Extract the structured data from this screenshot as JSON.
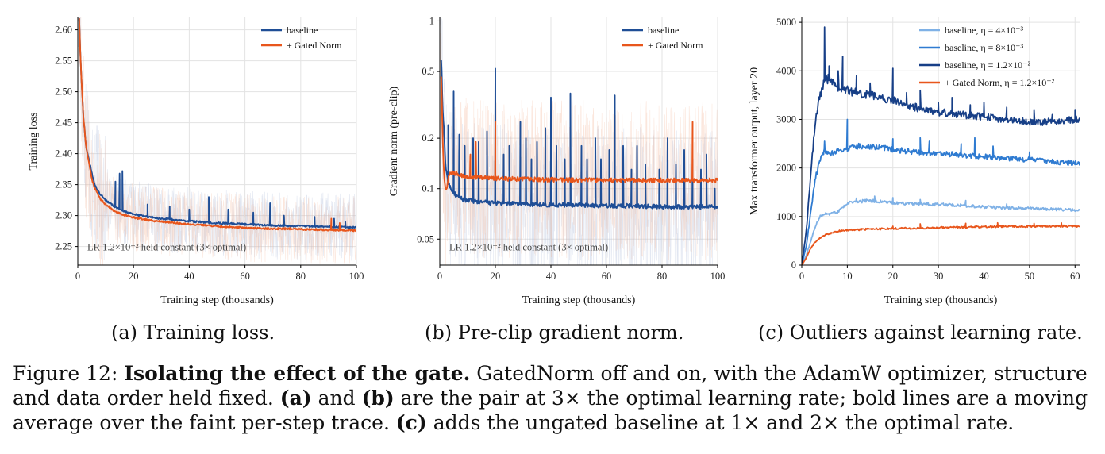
{
  "chart_data": [
    {
      "type": "line",
      "xlabel": "Training step (thousands)",
      "ylabel": "Training loss",
      "xlim": [
        0,
        100
      ],
      "ylim": [
        2.22,
        2.62
      ],
      "xticks": [
        "0",
        "20",
        "40",
        "60",
        "80",
        "100"
      ],
      "yticks": [
        "2.25",
        "2.30",
        "2.35",
        "2.40",
        "2.45",
        "2.50",
        "2.55",
        "2.60"
      ],
      "annotation": "LR 1.2×10⁻² held constant  (3× optimal)",
      "legend": {
        "placement": "top-right",
        "entries": [
          "baseline",
          "+ Gated Norm"
        ]
      },
      "grid": true,
      "series": [
        {
          "name": "baseline",
          "color": "#1f4e96",
          "x": [
            0.5,
            1,
            2,
            3,
            4,
            5,
            6,
            8,
            10,
            13,
            16,
            20,
            25,
            30,
            40,
            50,
            60,
            70,
            80,
            90,
            100
          ],
          "y": [
            2.62,
            2.55,
            2.46,
            2.41,
            2.39,
            2.37,
            2.35,
            2.335,
            2.325,
            2.315,
            2.308,
            2.302,
            2.298,
            2.295,
            2.291,
            2.288,
            2.286,
            2.284,
            2.283,
            2.282,
            2.281
          ],
          "spikes": [
            [
              13.5,
              2.355
            ],
            [
              15,
              2.368
            ],
            [
              16,
              2.372
            ],
            [
              25,
              2.318
            ],
            [
              33,
              2.315
            ],
            [
              40,
              2.31
            ],
            [
              47,
              2.33
            ],
            [
              54,
              2.31
            ],
            [
              63,
              2.305
            ],
            [
              69,
              2.32
            ],
            [
              74,
              2.3
            ],
            [
              85,
              2.298
            ],
            [
              92,
              2.295
            ],
            [
              96,
              2.29
            ]
          ]
        },
        {
          "name": "+ Gated Norm",
          "color": "#e8561c",
          "x": [
            0.5,
            1,
            2,
            3,
            4,
            5,
            6,
            8,
            10,
            13,
            16,
            20,
            25,
            30,
            40,
            50,
            60,
            70,
            80,
            90,
            100
          ],
          "y": [
            2.62,
            2.55,
            2.46,
            2.41,
            2.385,
            2.36,
            2.345,
            2.327,
            2.318,
            2.308,
            2.302,
            2.297,
            2.293,
            2.29,
            2.286,
            2.283,
            2.28,
            2.279,
            2.278,
            2.277,
            2.276
          ],
          "spikes": [
            [
              91,
              2.295
            ],
            [
              94,
              2.288
            ]
          ]
        }
      ]
    },
    {
      "type": "line",
      "xlabel": "Training step (thousands)",
      "ylabel": "Gradient norm (pre-clip)",
      "xlim": [
        0,
        100
      ],
      "ylim": [
        0.035,
        1.05
      ],
      "yscale": "log",
      "xticks": [
        "0",
        "20",
        "40",
        "60",
        "80",
        "100"
      ],
      "yticks": [
        "0.05",
        "0.1",
        "0.2",
        "0.5",
        "1"
      ],
      "annotation": "LR 1.2×10⁻² held constant  (3× optimal)",
      "legend": {
        "placement": "top-right",
        "entries": [
          "baseline",
          "+ Gated Norm"
        ]
      },
      "grid": true,
      "series": [
        {
          "name": "baseline",
          "color": "#1f4e96",
          "x": [
            0.5,
            1,
            2,
            3,
            4,
            5,
            6,
            8,
            10,
            15,
            20,
            30,
            40,
            50,
            60,
            70,
            80,
            90,
            100
          ],
          "y": [
            0.6,
            0.3,
            0.14,
            0.11,
            0.1,
            0.095,
            0.09,
            0.087,
            0.085,
            0.083,
            0.082,
            0.081,
            0.08,
            0.08,
            0.079,
            0.079,
            0.078,
            0.078,
            0.078
          ],
          "spikes": [
            [
              3,
              0.24
            ],
            [
              5,
              0.38
            ],
            [
              7,
              0.21
            ],
            [
              9,
              0.18
            ],
            [
              12,
              0.2
            ],
            [
              14,
              0.19
            ],
            [
              17,
              0.22
            ],
            [
              20,
              0.52
            ],
            [
              23,
              0.16
            ],
            [
              25,
              0.18
            ],
            [
              29,
              0.25
            ],
            [
              31,
              0.2
            ],
            [
              33,
              0.15
            ],
            [
              35,
              0.19
            ],
            [
              38,
              0.23
            ],
            [
              40,
              0.35
            ],
            [
              42,
              0.18
            ],
            [
              45,
              0.15
            ],
            [
              47,
              0.37
            ],
            [
              51,
              0.18
            ],
            [
              53,
              0.15
            ],
            [
              56,
              0.2
            ],
            [
              58,
              0.15
            ],
            [
              61,
              0.17
            ],
            [
              63,
              0.36
            ],
            [
              66,
              0.18
            ],
            [
              69,
              0.13
            ],
            [
              71,
              0.18
            ],
            [
              74,
              0.14
            ],
            [
              79,
              0.13
            ],
            [
              82,
              0.2
            ],
            [
              85,
              0.14
            ],
            [
              88,
              0.17
            ],
            [
              91,
              0.15
            ],
            [
              94,
              0.13
            ],
            [
              96,
              0.16
            ],
            [
              99,
              0.1
            ]
          ]
        },
        {
          "name": "+ Gated Norm",
          "color": "#e8561c",
          "x": [
            0.5,
            1,
            1.5,
            2,
            2.5,
            3,
            4,
            6,
            10,
            20,
            40,
            60,
            80,
            100
          ],
          "y": [
            0.48,
            0.2,
            0.12,
            0.1,
            0.1,
            0.115,
            0.125,
            0.122,
            0.118,
            0.115,
            0.113,
            0.112,
            0.112,
            0.112
          ],
          "spikes": [
            [
              11,
              0.16
            ],
            [
              13,
              0.19
            ],
            [
              20,
              0.25
            ],
            [
              91,
              0.25
            ]
          ]
        }
      ]
    },
    {
      "type": "line",
      "xlabel": "Training step (thousands)",
      "ylabel": "Max transformer output, layer 20",
      "xlim": [
        0,
        61
      ],
      "ylim": [
        0,
        5100
      ],
      "xticks": [
        "0",
        "10",
        "20",
        "30",
        "40",
        "50",
        "60"
      ],
      "yticks": [
        "0",
        "1000",
        "2000",
        "3000",
        "4000",
        "5000"
      ],
      "legend": {
        "placement": "top-right",
        "entries": [
          "baseline, η = 4×10⁻³",
          "baseline, η = 8×10⁻³",
          "baseline, η = 1.2×10⁻²",
          "+ Gated Norm, η = 1.2×10⁻²"
        ]
      },
      "grid": true,
      "series": [
        {
          "name": "baseline, η = 4×10⁻³",
          "color": "#7fb1e6",
          "x": [
            0,
            1,
            2,
            3,
            4,
            5,
            6,
            8,
            10,
            12,
            15,
            20,
            25,
            30,
            35,
            40,
            45,
            50,
            55,
            61
          ],
          "y": [
            0,
            200,
            500,
            800,
            1000,
            1050,
            1050,
            1100,
            1280,
            1300,
            1330,
            1280,
            1260,
            1250,
            1230,
            1200,
            1180,
            1170,
            1150,
            1130
          ],
          "spikes": [
            [
              12,
              1380
            ],
            [
              16,
              1420
            ],
            [
              20,
              1390
            ],
            [
              26,
              1350
            ],
            [
              36,
              1330
            ],
            [
              45,
              1260
            ]
          ]
        },
        {
          "name": "baseline, η = 8×10⁻³",
          "color": "#2f7bd1",
          "x": [
            0,
            1,
            2,
            3,
            4,
            5,
            6,
            7,
            8,
            10,
            12,
            15,
            20,
            25,
            30,
            35,
            40,
            45,
            50,
            55,
            61
          ],
          "y": [
            0,
            400,
            1100,
            1800,
            2150,
            2350,
            2300,
            2300,
            2350,
            2400,
            2450,
            2450,
            2380,
            2330,
            2300,
            2270,
            2230,
            2200,
            2170,
            2130,
            2100
          ],
          "spikes": [
            [
              5,
              2550
            ],
            [
              10,
              3000
            ],
            [
              20,
              2600
            ],
            [
              26,
              2620
            ],
            [
              28,
              2550
            ],
            [
              35,
              2500
            ],
            [
              38,
              2620
            ],
            [
              42,
              2450
            ],
            [
              50,
              2330
            ]
          ]
        },
        {
          "name": "baseline, η = 1.2×10⁻²",
          "color": "#173f87",
          "x": [
            0,
            1,
            2,
            3,
            4,
            5,
            6,
            7,
            8,
            10,
            12,
            15,
            20,
            25,
            30,
            35,
            40,
            45,
            50,
            55,
            61
          ],
          "y": [
            0,
            700,
            1900,
            3000,
            3500,
            3800,
            3850,
            3750,
            3650,
            3600,
            3550,
            3500,
            3400,
            3250,
            3150,
            3100,
            3050,
            3000,
            2950,
            2950,
            3000
          ],
          "spikes": [
            [
              5,
              4900
            ],
            [
              6,
              4100
            ],
            [
              8,
              4000
            ],
            [
              9,
              4300
            ],
            [
              12,
              3900
            ],
            [
              15,
              3750
            ],
            [
              20,
              4050
            ],
            [
              23,
              3550
            ],
            [
              26,
              3600
            ],
            [
              30,
              3350
            ],
            [
              33,
              3450
            ],
            [
              37,
              3300
            ],
            [
              40,
              3350
            ],
            [
              45,
              3250
            ],
            [
              51,
              3200
            ],
            [
              55,
              3100
            ],
            [
              60,
              3200
            ]
          ]
        },
        {
          "name": "+ Gated Norm, η = 1.2×10⁻²",
          "color": "#e8561c",
          "x": [
            0,
            1,
            2,
            3,
            4,
            5,
            6,
            8,
            10,
            12,
            15,
            20,
            25,
            30,
            35,
            40,
            45,
            50,
            55,
            61
          ],
          "y": [
            0,
            150,
            350,
            480,
            560,
            620,
            650,
            700,
            720,
            730,
            740,
            750,
            760,
            770,
            780,
            790,
            795,
            800,
            805,
            800
          ],
          "spikes": [
            [
              20,
              800
            ],
            [
              26,
              850
            ],
            [
              36,
              860
            ],
            [
              43,
              870
            ],
            [
              51,
              860
            ],
            [
              57,
              870
            ]
          ]
        }
      ]
    }
  ],
  "subcaptions": [
    "(a) Training loss.",
    "(b) Pre-clip gradient norm.",
    "(c) Outliers against learning rate."
  ],
  "caption": {
    "label": "Figure 12:",
    "bold": "Isolating the effect of the gate.",
    "text1": "GatedNorm off and on, with the AdamW optimizer, structure and data order held fixed.",
    "ref_a": "(a)",
    "text2": "and",
    "ref_b": "(b)",
    "text3": "are the pair at 3× the optimal learning rate; bold lines are a moving average over the faint per-step trace.",
    "ref_c": "(c)",
    "text4": "adds the ungated baseline at 1× and 2× the optimal rate."
  }
}
